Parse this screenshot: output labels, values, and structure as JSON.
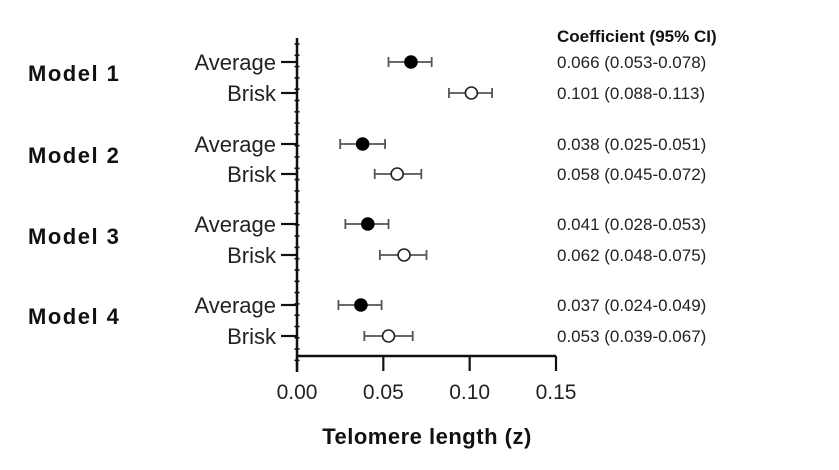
{
  "chart_data": {
    "type": "forest",
    "title": "",
    "xlabel": "Telomere length (z)",
    "ylabel": "",
    "xlim": [
      0.0,
      0.15
    ],
    "x_ticks": [
      "0.00",
      "0.05",
      "0.10",
      "0.15"
    ],
    "x_tick_values": [
      0.0,
      0.05,
      0.1,
      0.15
    ],
    "table_header": "Coefficient (95% CI)",
    "legend": {
      "Average": "filled black circle",
      "Brisk": "open white circle"
    },
    "groups": [
      {
        "name": "Model 1",
        "rows": [
          {
            "label": "Average",
            "estimate": 0.066,
            "ci_low": 0.053,
            "ci_high": 0.078,
            "text": "0.066 (0.053-0.078)",
            "marker": "filled"
          },
          {
            "label": "Brisk",
            "estimate": 0.101,
            "ci_low": 0.088,
            "ci_high": 0.113,
            "text": "0.101 (0.088-0.113)",
            "marker": "open"
          }
        ]
      },
      {
        "name": "Model 2",
        "rows": [
          {
            "label": "Average",
            "estimate": 0.038,
            "ci_low": 0.025,
            "ci_high": 0.051,
            "text": "0.038 (0.025-0.051)",
            "marker": "filled"
          },
          {
            "label": "Brisk",
            "estimate": 0.058,
            "ci_low": 0.045,
            "ci_high": 0.072,
            "text": "0.058 (0.045-0.072)",
            "marker": "open"
          }
        ]
      },
      {
        "name": "Model 3",
        "rows": [
          {
            "label": "Average",
            "estimate": 0.041,
            "ci_low": 0.028,
            "ci_high": 0.053,
            "text": "0.041 (0.028-0.053)",
            "marker": "filled"
          },
          {
            "label": "Brisk",
            "estimate": 0.062,
            "ci_low": 0.048,
            "ci_high": 0.075,
            "text": "0.062 (0.048-0.075)",
            "marker": "open"
          }
        ]
      },
      {
        "name": "Model 4",
        "rows": [
          {
            "label": "Average",
            "estimate": 0.037,
            "ci_low": 0.024,
            "ci_high": 0.049,
            "text": "0.037 (0.024-0.049)",
            "marker": "filled"
          },
          {
            "label": "Brisk",
            "estimate": 0.053,
            "ci_low": 0.039,
            "ci_high": 0.067,
            "text": "0.053 (0.039-0.067)",
            "marker": "open"
          }
        ]
      }
    ],
    "colors": {
      "marker_filled": "#000000",
      "marker_open_fill": "#ffffff",
      "marker_stroke": "#222222",
      "error_bar": "#555555",
      "axis": "#111111"
    }
  }
}
